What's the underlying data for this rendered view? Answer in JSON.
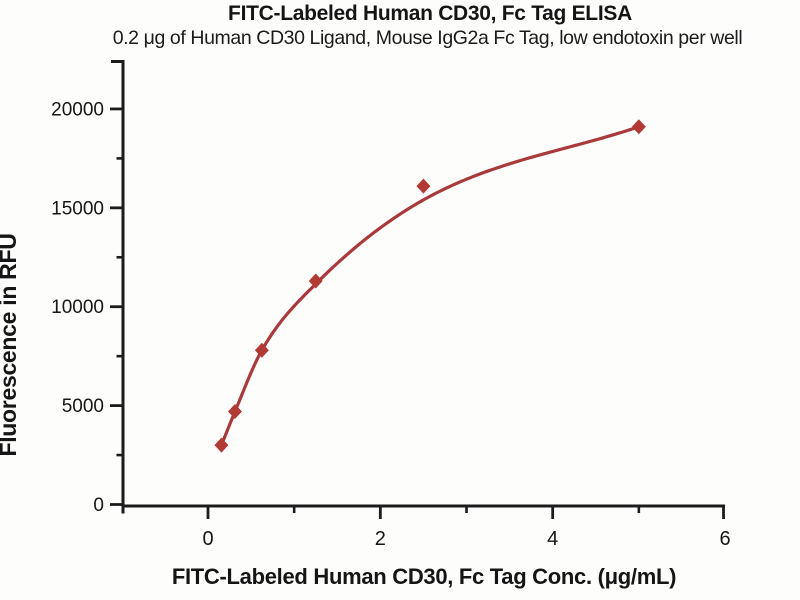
{
  "chart_data": {
    "type": "scatter",
    "title": "FITC-Labeled Human CD30, Fc Tag ELISA",
    "subtitle": "0.2 μg of Human CD30 Ligand, Mouse IgG2a Fc Tag, low endotoxin per well",
    "xlabel": "FITC-Labeled Human CD30, Fc Tag Conc. (μg/mL)",
    "ylabel": "Fluorescence in RFU",
    "series": [
      {
        "name": "FITC-Labeled Human CD30, Fc Tag",
        "x": [
          0.156,
          0.313,
          0.625,
          1.25,
          2.5,
          5.0
        ],
        "y": [
          3000,
          4700,
          7800,
          11300,
          16100,
          19100
        ],
        "fit_curve_y": [
          3000,
          4700,
          7800,
          11150,
          15400,
          19100
        ],
        "marker": "diamond",
        "marker_color": "#b23a35",
        "line_color": "#a93a3c"
      }
    ],
    "xlim": [
      -1,
      6
    ],
    "ylim": [
      0,
      22500
    ],
    "x_major_ticks": [
      0,
      2,
      4,
      6
    ],
    "x_minor_ticks": [
      1,
      3,
      5
    ],
    "y_major_ticks": [
      0,
      5000,
      10000,
      15000,
      20000
    ],
    "y_minor_ticks": [
      2500,
      7500,
      12500,
      17500
    ],
    "grid": false,
    "legend": "none",
    "axis_color": "#1c1c1c",
    "text_color": "#161616"
  }
}
